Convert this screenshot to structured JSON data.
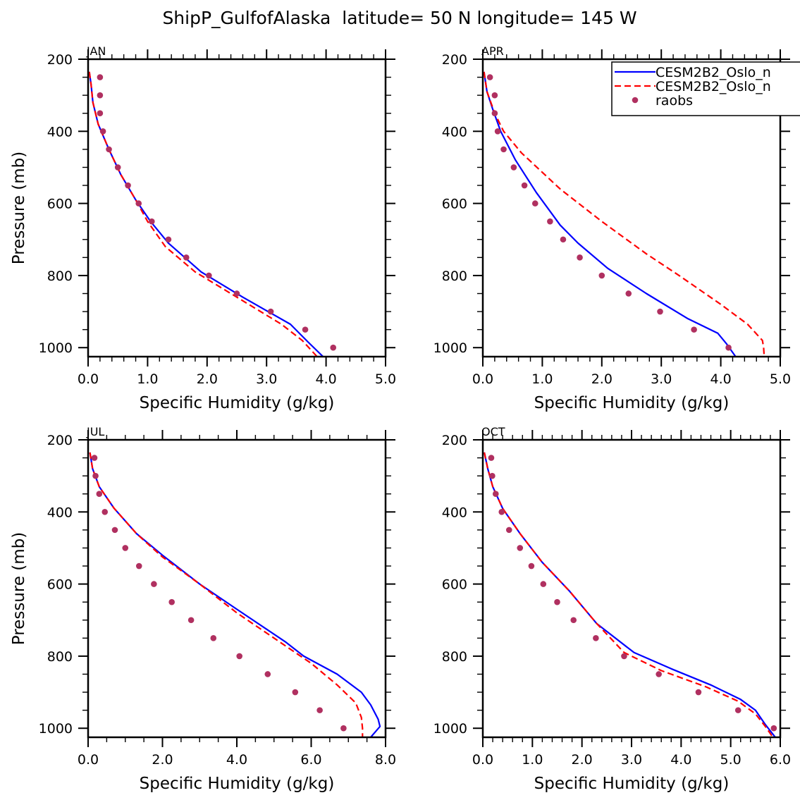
{
  "chart_data": {
    "type": "line",
    "title": "ShipP_GulfofAlaska  latitude= 50 N longitude= 145 W",
    "legend": {
      "placement": "top-right of APR panel",
      "entries": [
        {
          "label": "CESM2B2_Oslo_n",
          "style": "solid",
          "color": "#0000ff"
        },
        {
          "label": "CESM2B2_Oslo_n",
          "style": "dashed",
          "color": "#ff0000"
        },
        {
          "label": "raobs",
          "style": "marker",
          "color": "#b03060"
        }
      ]
    },
    "series_colors": {
      "model_a": "#0000ff",
      "model_b": "#ff0000",
      "raobs": "#b03060"
    },
    "panels": [
      {
        "label": "JAN",
        "xlabel": "Specific Humidity (g/kg)",
        "ylabel": "Pressure (mb)",
        "xlim": [
          0,
          5
        ],
        "x_major_ticks": [
          0,
          1,
          2,
          3,
          4,
          5
        ],
        "x_tick_labels": [
          "0.0",
          "1.0",
          "2.0",
          "3.0",
          "4.0",
          "5.0"
        ],
        "x_minor_step": 0.2,
        "ylim": [
          200,
          1025
        ],
        "y_major_ticks": [
          200,
          400,
          600,
          800,
          1000
        ],
        "y_tick_labels": [
          "200",
          "400",
          "600",
          "800",
          "1000"
        ],
        "y_minor_step": 50,
        "show_ylabel": true,
        "series": [
          {
            "key": "model_a",
            "name": "CESM2B2_Oslo_n (solid)",
            "points": [
              [
                0.02,
                235
              ],
              [
                0.05,
                270
              ],
              [
                0.08,
                320
              ],
              [
                0.17,
                380
              ],
              [
                0.35,
                450
              ],
              [
                0.55,
                520
              ],
              [
                0.8,
                590
              ],
              [
                1.05,
                650
              ],
              [
                1.35,
                710
              ],
              [
                1.9,
                790
              ],
              [
                2.6,
                860
              ],
              [
                3.4,
                935
              ],
              [
                3.7,
                985
              ],
              [
                3.95,
                1025
              ]
            ]
          },
          {
            "key": "model_b",
            "name": "CESM2B2_Oslo_n (dashed)",
            "points": [
              [
                0.02,
                235
              ],
              [
                0.05,
                270
              ],
              [
                0.08,
                320
              ],
              [
                0.17,
                380
              ],
              [
                0.35,
                450
              ],
              [
                0.55,
                520
              ],
              [
                0.8,
                590
              ],
              [
                1.0,
                650
              ],
              [
                1.3,
                720
              ],
              [
                1.8,
                790
              ],
              [
                2.5,
                860
              ],
              [
                3.25,
                935
              ],
              [
                3.6,
                980
              ],
              [
                3.85,
                1025
              ]
            ]
          },
          {
            "key": "raobs",
            "name": "raobs",
            "points": [
              [
                0.2,
                250
              ],
              [
                0.2,
                300
              ],
              [
                0.2,
                350
              ],
              [
                0.25,
                400
              ],
              [
                0.35,
                450
              ],
              [
                0.5,
                500
              ],
              [
                0.67,
                550
              ],
              [
                0.85,
                600
              ],
              [
                1.07,
                650
              ],
              [
                1.35,
                700
              ],
              [
                1.65,
                750
              ],
              [
                2.03,
                800
              ],
              [
                2.5,
                850
              ],
              [
                3.07,
                900
              ],
              [
                3.65,
                950
              ],
              [
                4.12,
                1000
              ]
            ]
          }
        ]
      },
      {
        "label": "APR",
        "xlabel": "Specific Humidity (g/kg)",
        "ylabel": "",
        "xlim": [
          0,
          5
        ],
        "x_major_ticks": [
          0,
          1,
          2,
          3,
          4,
          5
        ],
        "x_tick_labels": [
          "0.0",
          "1.0",
          "2.0",
          "3.0",
          "4.0",
          "5.0"
        ],
        "x_minor_step": 0.2,
        "ylim": [
          200,
          1025
        ],
        "y_major_ticks": [
          200,
          400,
          600,
          800,
          1000
        ],
        "y_tick_labels": [
          "200",
          "400",
          "600",
          "800",
          "1000"
        ],
        "y_minor_step": 50,
        "show_ylabel": false,
        "series": [
          {
            "key": "model_a",
            "name": "CESM2B2_Oslo_n (solid)",
            "points": [
              [
                0.02,
                235
              ],
              [
                0.07,
                290
              ],
              [
                0.17,
                340
              ],
              [
                0.3,
                400
              ],
              [
                0.55,
                480
              ],
              [
                0.9,
                570
              ],
              [
                1.3,
                660
              ],
              [
                1.6,
                710
              ],
              [
                2.1,
                780
              ],
              [
                2.75,
                850
              ],
              [
                3.45,
                920
              ],
              [
                3.95,
                960
              ],
              [
                4.1,
                990
              ],
              [
                4.25,
                1025
              ]
            ]
          },
          {
            "key": "model_b",
            "name": "CESM2B2_Oslo_n (dashed)",
            "points": [
              [
                0.02,
                235
              ],
              [
                0.07,
                290
              ],
              [
                0.2,
                350
              ],
              [
                0.35,
                400
              ],
              [
                0.65,
                460
              ],
              [
                1.3,
                560
              ],
              [
                2.0,
                650
              ],
              [
                2.75,
                740
              ],
              [
                3.3,
                800
              ],
              [
                4.0,
                880
              ],
              [
                4.45,
                935
              ],
              [
                4.7,
                980
              ],
              [
                4.72,
                1000
              ],
              [
                4.73,
                1025
              ]
            ]
          },
          {
            "key": "raobs",
            "name": "raobs",
            "points": [
              [
                0.12,
                250
              ],
              [
                0.2,
                300
              ],
              [
                0.2,
                350
              ],
              [
                0.25,
                400
              ],
              [
                0.35,
                450
              ],
              [
                0.52,
                500
              ],
              [
                0.7,
                550
              ],
              [
                0.88,
                600
              ],
              [
                1.13,
                650
              ],
              [
                1.35,
                700
              ],
              [
                1.63,
                750
              ],
              [
                2.0,
                800
              ],
              [
                2.45,
                850
              ],
              [
                2.98,
                900
              ],
              [
                3.55,
                950
              ],
              [
                4.13,
                1000
              ]
            ]
          }
        ]
      },
      {
        "label": "JUL",
        "xlabel": "Specific Humidity (g/kg)",
        "ylabel": "Pressure (mb)",
        "xlim": [
          0,
          8
        ],
        "x_major_ticks": [
          0,
          2,
          4,
          6,
          8
        ],
        "x_tick_labels": [
          "0.0",
          "2.0",
          "4.0",
          "6.0",
          "8.0"
        ],
        "x_minor_step": 0.5,
        "ylim": [
          200,
          1025
        ],
        "y_major_ticks": [
          200,
          400,
          600,
          800,
          1000
        ],
        "y_tick_labels": [
          "200",
          "400",
          "600",
          "800",
          "1000"
        ],
        "y_minor_step": 50,
        "show_ylabel": true,
        "series": [
          {
            "key": "model_a",
            "name": "CESM2B2_Oslo_n (solid)",
            "points": [
              [
                0.05,
                235
              ],
              [
                0.12,
                280
              ],
              [
                0.3,
                330
              ],
              [
                0.7,
                390
              ],
              [
                1.3,
                460
              ],
              [
                2.0,
                520
              ],
              [
                3.0,
                600
              ],
              [
                4.0,
                670
              ],
              [
                5.3,
                760
              ],
              [
                5.8,
                800
              ],
              [
                6.7,
                850
              ],
              [
                7.35,
                900
              ],
              [
                7.6,
                935
              ],
              [
                7.8,
                975
              ],
              [
                7.85,
                995
              ],
              [
                7.6,
                1025
              ]
            ]
          },
          {
            "key": "model_b",
            "name": "CESM2B2_Oslo_n (dashed)",
            "points": [
              [
                0.05,
                235
              ],
              [
                0.12,
                280
              ],
              [
                0.3,
                330
              ],
              [
                0.7,
                390
              ],
              [
                1.3,
                460
              ],
              [
                2.0,
                525
              ],
              [
                3.0,
                600
              ],
              [
                4.0,
                680
              ],
              [
                5.0,
                750
              ],
              [
                6.0,
                820
              ],
              [
                6.7,
                880
              ],
              [
                7.2,
                930
              ],
              [
                7.35,
                970
              ],
              [
                7.38,
                1000
              ],
              [
                7.38,
                1025
              ]
            ]
          },
          {
            "key": "raobs",
            "name": "raobs",
            "points": [
              [
                0.17,
                250
              ],
              [
                0.2,
                300
              ],
              [
                0.3,
                350
              ],
              [
                0.45,
                400
              ],
              [
                0.72,
                450
              ],
              [
                1.0,
                500
              ],
              [
                1.37,
                550
              ],
              [
                1.77,
                600
              ],
              [
                2.25,
                650
              ],
              [
                2.77,
                700
              ],
              [
                3.37,
                750
              ],
              [
                4.07,
                800
              ],
              [
                4.83,
                850
              ],
              [
                5.57,
                900
              ],
              [
                6.23,
                950
              ],
              [
                6.87,
                1000
              ]
            ]
          }
        ]
      },
      {
        "label": "OCT",
        "xlabel": "Specific Humidity (g/kg)",
        "ylabel": "",
        "xlim": [
          0,
          6
        ],
        "x_major_ticks": [
          0,
          1,
          2,
          3,
          4,
          5,
          6
        ],
        "x_tick_labels": [
          "0.0",
          "1.0",
          "2.0",
          "3.0",
          "4.0",
          "5.0",
          "6.0"
        ],
        "x_minor_step": 0.2,
        "ylim": [
          200,
          1025
        ],
        "y_major_ticks": [
          200,
          400,
          600,
          800,
          1000
        ],
        "y_tick_labels": [
          "200",
          "400",
          "600",
          "800",
          "1000"
        ],
        "y_minor_step": 50,
        "show_ylabel": false,
        "series": [
          {
            "key": "model_a",
            "name": "CESM2B2_Oslo_n (solid)",
            "points": [
              [
                0.03,
                235
              ],
              [
                0.1,
                280
              ],
              [
                0.2,
                330
              ],
              [
                0.4,
                390
              ],
              [
                0.75,
                460
              ],
              [
                1.2,
                540
              ],
              [
                1.75,
                620
              ],
              [
                2.3,
                710
              ],
              [
                3.05,
                790
              ],
              [
                3.8,
                835
              ],
              [
                4.6,
                880
              ],
              [
                5.2,
                920
              ],
              [
                5.5,
                950
              ],
              [
                5.7,
                990
              ],
              [
                5.9,
                1025
              ]
            ]
          },
          {
            "key": "model_b",
            "name": "CESM2B2_Oslo_n (dashed)",
            "points": [
              [
                0.03,
                235
              ],
              [
                0.1,
                280
              ],
              [
                0.2,
                330
              ],
              [
                0.4,
                390
              ],
              [
                0.75,
                460
              ],
              [
                1.2,
                540
              ],
              [
                1.75,
                620
              ],
              [
                2.3,
                710
              ],
              [
                2.85,
                790
              ],
              [
                3.6,
                840
              ],
              [
                4.5,
                885
              ],
              [
                5.15,
                925
              ],
              [
                5.5,
                960
              ],
              [
                5.7,
                995
              ],
              [
                5.85,
                1025
              ]
            ]
          },
          {
            "key": "raobs",
            "name": "raobs",
            "points": [
              [
                0.17,
                250
              ],
              [
                0.19,
                300
              ],
              [
                0.26,
                350
              ],
              [
                0.38,
                400
              ],
              [
                0.53,
                450
              ],
              [
                0.75,
                500
              ],
              [
                0.98,
                550
              ],
              [
                1.22,
                600
              ],
              [
                1.5,
                650
              ],
              [
                1.83,
                700
              ],
              [
                2.28,
                750
              ],
              [
                2.85,
                800
              ],
              [
                3.55,
                850
              ],
              [
                4.35,
                900
              ],
              [
                5.15,
                950
              ],
              [
                5.87,
                1000
              ]
            ]
          }
        ]
      }
    ]
  }
}
